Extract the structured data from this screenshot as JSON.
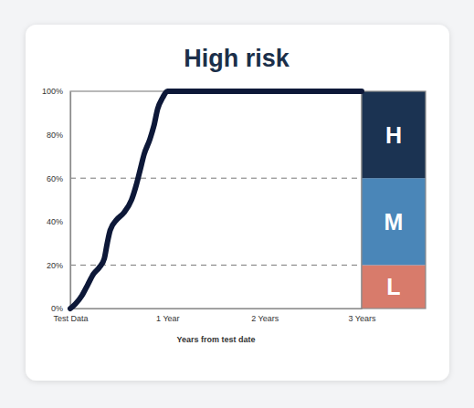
{
  "chart_data": {
    "type": "line",
    "title": "High risk",
    "x_label": "Years from test date",
    "x": [
      0,
      0.05,
      0.12,
      0.18,
      0.24,
      0.3,
      0.35,
      0.38,
      0.41,
      0.48,
      0.55,
      0.63,
      0.68,
      0.72,
      0.76,
      0.82,
      0.86,
      0.9,
      0.95,
      1.0,
      1.1,
      2,
      3
    ],
    "values": [
      0,
      2,
      6,
      11,
      16,
      19,
      23,
      30,
      36,
      41,
      44,
      50,
      57,
      64,
      71,
      78,
      84,
      92,
      97,
      100,
      100,
      100,
      100
    ],
    "color": "#0d1838",
    "xlim": [
      0,
      3
    ],
    "xticks": [
      {
        "value": 0,
        "label": "Test Data"
      },
      {
        "value": 1,
        "label": "1 Year"
      },
      {
        "value": 2,
        "label": "2 Years"
      },
      {
        "value": 3,
        "label": "3 Years"
      }
    ],
    "ylim": [
      0,
      100
    ],
    "yticks": [
      {
        "value": 0,
        "label": "0%"
      },
      {
        "value": 20,
        "label": "20%"
      },
      {
        "value": 40,
        "label": "40%"
      },
      {
        "value": 60,
        "label": "60%"
      },
      {
        "value": 80,
        "label": "80%"
      },
      {
        "value": 100,
        "label": "100%"
      }
    ],
    "bands": [
      {
        "label": "L",
        "from": 0,
        "to": 20,
        "color": "#d87b6b"
      },
      {
        "label": "M",
        "from": 20,
        "to": 60,
        "color": "#4a86b8"
      },
      {
        "label": "H",
        "from": 60,
        "to": 100,
        "color": "#1b3352"
      }
    ]
  }
}
